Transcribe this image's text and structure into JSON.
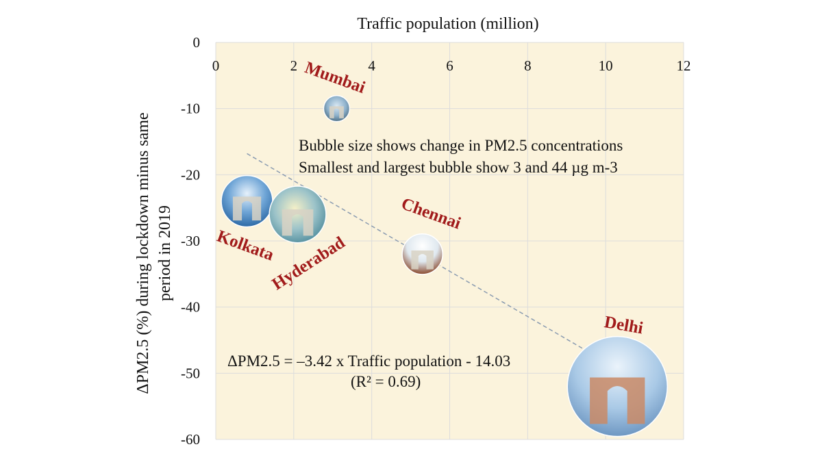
{
  "chart_data": {
    "type": "scatter",
    "xlabel": "Traffic population (million)",
    "ylabel_line1": "ΔPM2.5 (%) during lockdown minus same",
    "ylabel_line2": "period in 2019",
    "xlim": [
      0,
      12
    ],
    "ylim": [
      -60,
      0
    ],
    "x_ticks": [
      0,
      2,
      4,
      6,
      8,
      10,
      12
    ],
    "y_ticks": [
      0,
      -10,
      -20,
      -30,
      -40,
      -50,
      -60
    ],
    "x_axis_position": "top",
    "grid": true,
    "bubbles_label": "City",
    "points": [
      {
        "label": "Mumbai",
        "x": 3.1,
        "y": -10,
        "size": 3
      },
      {
        "label": "Kolkata",
        "x": 0.8,
        "y": -24,
        "size": 17
      },
      {
        "label": "Hyderabad",
        "x": 2.1,
        "y": -26,
        "size": 20
      },
      {
        "label": "Chennai",
        "x": 5.3,
        "y": -32,
        "size": 11
      },
      {
        "label": "Delhi",
        "x": 10.3,
        "y": -52,
        "size": 44
      }
    ],
    "trendline": {
      "x": [
        0.8,
        10.3
      ],
      "y": [
        -16.8,
        -49.3
      ],
      "style": "dashed"
    },
    "annotations": {
      "legend_line1": "Bubble size shows change in PM2.5 concentrations",
      "legend_line2": "Smallest and largest bubble show 3 and 44 µg m-3",
      "equation": "ΔPM2.5 = –3.42 x Traffic population - 14.03",
      "r2": "(R² = 0.69)"
    }
  },
  "colors": {
    "plot_background": "#fbf3dc",
    "grid": "#dcdcdc",
    "city_label": "#a11b1b",
    "trendline": "#8a9bb0"
  }
}
